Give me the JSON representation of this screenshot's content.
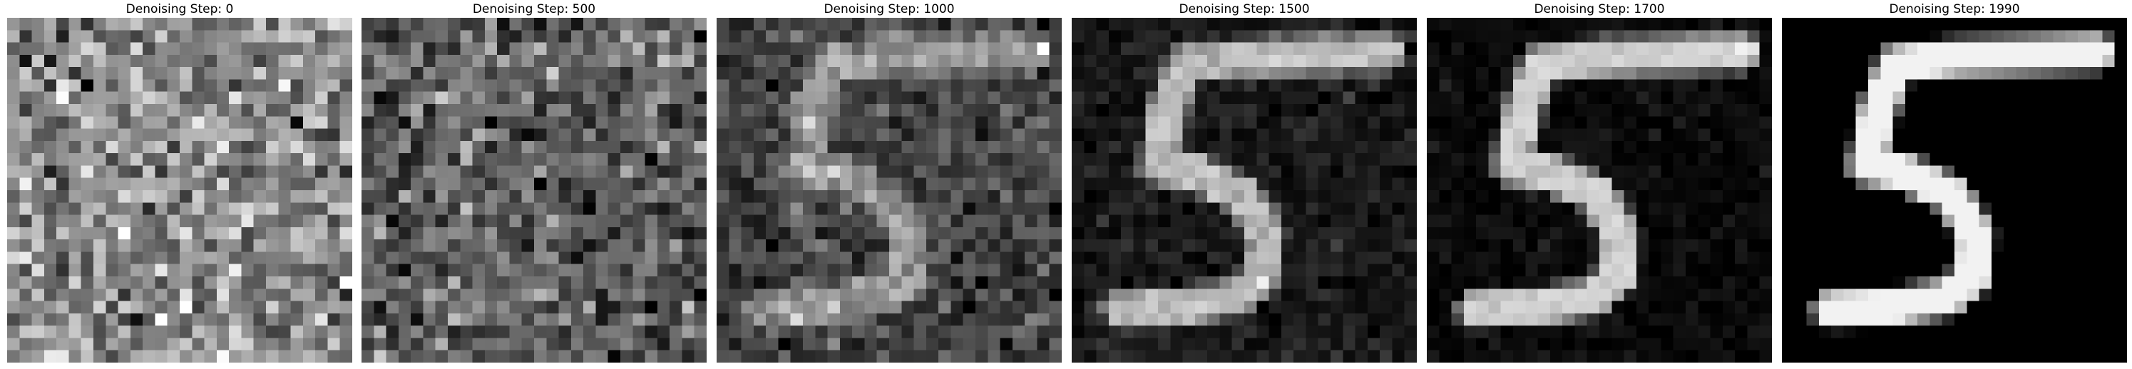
{
  "figure": {
    "panels": [
      {
        "title": "Denoising Step: 0",
        "step": 0
      },
      {
        "title": "Denoising Step: 500",
        "step": 500
      },
      {
        "title": "Denoising Step: 1000",
        "step": 1000
      },
      {
        "title": "Denoising Step: 1500",
        "step": 1500
      },
      {
        "title": "Denoising Step: 1700",
        "step": 1700
      },
      {
        "title": "Denoising Step: 1990",
        "step": 1990
      }
    ]
  }
}
